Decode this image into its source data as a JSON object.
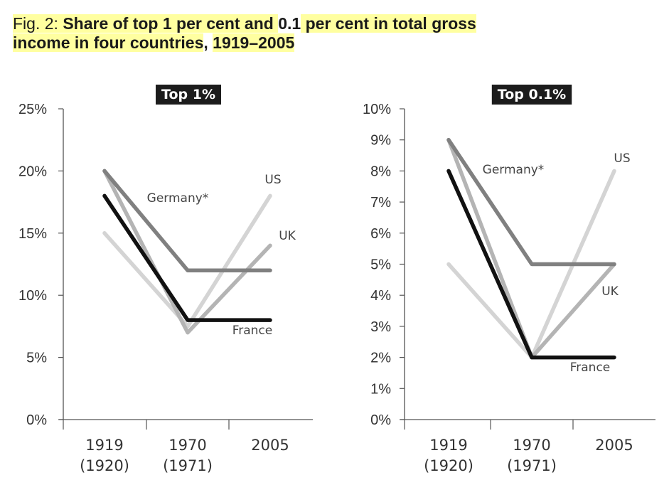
{
  "title": {
    "prefix": "Fig. 2: ",
    "line1_a": "Share of top 1 per cent and ",
    "line1_b": "0.1",
    "line1_c": " per cent in total gross",
    "line2_a": "income in four countries",
    "line2_b": ", ",
    "line2_c": "1919–2005"
  },
  "chart_data": [
    {
      "type": "line",
      "title": "Top 1%",
      "categories": [
        [
          "1919",
          "(1920)"
        ],
        [
          "1970",
          "(1971)"
        ],
        [
          "2005"
        ]
      ],
      "y_ticks": [
        "0%",
        "5%",
        "10%",
        "15%",
        "20%",
        "25%"
      ],
      "ylim": [
        0,
        25
      ],
      "grid": false,
      "series": [
        {
          "name": "US",
          "color": "#d4d4d4",
          "values": [
            15,
            7.5,
            18
          ]
        },
        {
          "name": "UK",
          "color": "#b4b4b4",
          "values": [
            20,
            7,
            14
          ]
        },
        {
          "name": "France",
          "color": "#111111",
          "values": [
            18,
            8,
            8
          ]
        },
        {
          "name": "Germany*",
          "color": "#808080",
          "values": [
            20,
            12,
            12
          ]
        }
      ]
    },
    {
      "type": "line",
      "title": "Top 0.1%",
      "categories": [
        [
          "1919",
          "(1920)"
        ],
        [
          "1970",
          "(1971)"
        ],
        [
          "2005"
        ]
      ],
      "y_ticks": [
        "0%",
        "1%",
        "2%",
        "3%",
        "4%",
        "5%",
        "6%",
        "7%",
        "8%",
        "9%",
        "10%"
      ],
      "ylim": [
        0,
        10
      ],
      "grid": false,
      "series": [
        {
          "name": "US",
          "color": "#d4d4d4",
          "values": [
            5,
            2,
            8
          ]
        },
        {
          "name": "UK",
          "color": "#b4b4b4",
          "values": [
            9,
            2,
            5
          ]
        },
        {
          "name": "France",
          "color": "#111111",
          "values": [
            8,
            2,
            2
          ]
        },
        {
          "name": "Germany*",
          "color": "#808080",
          "values": [
            9,
            5,
            5
          ]
        }
      ]
    }
  ]
}
